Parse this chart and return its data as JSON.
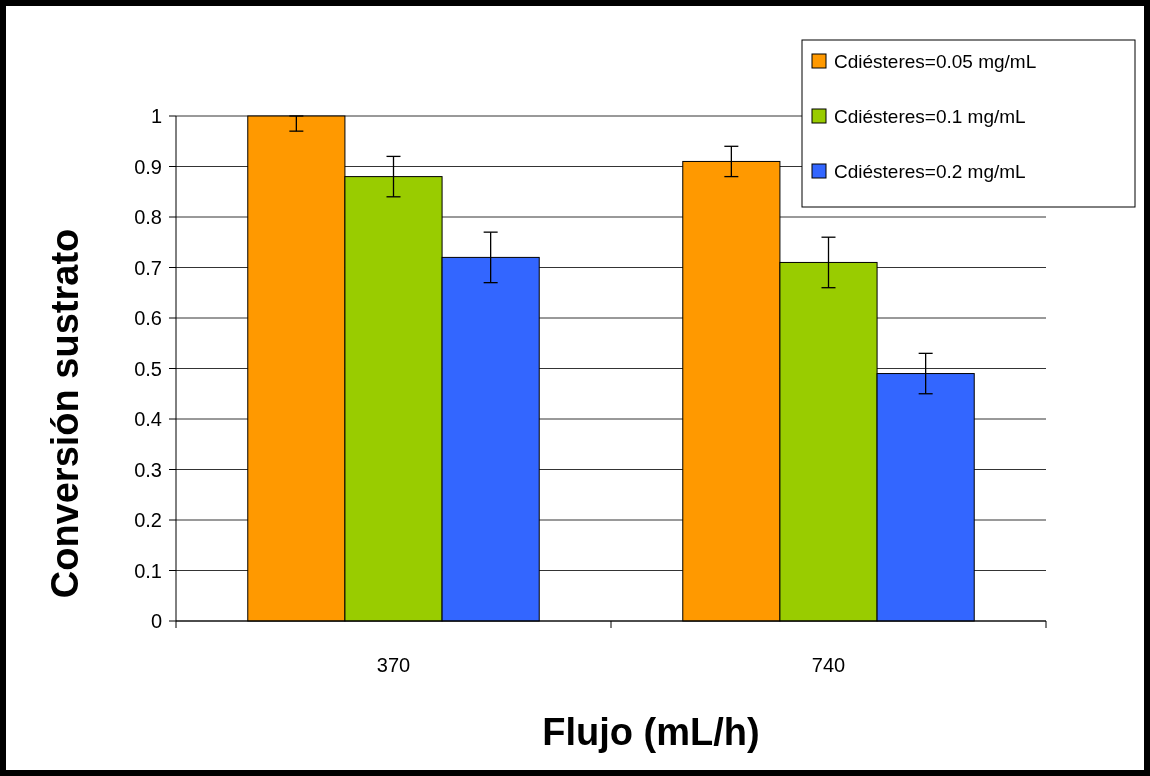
{
  "chart_data": {
    "type": "bar",
    "xlabel": "Flujo (mL/h)",
    "ylabel": "Conversión sustrato",
    "categories": [
      "370",
      "740"
    ],
    "series": [
      {
        "name": "Cdiésteres=0.05 mg/mL",
        "color": "#ff9900",
        "values": [
          1.0,
          0.91
        ],
        "errors": [
          [
            0.97,
            1.0
          ],
          0.03
        ]
      },
      {
        "name": "Cdiésteres=0.1 mg/mL",
        "color": "#99cc00",
        "values": [
          0.88,
          0.71
        ],
        "errors": [
          0.04,
          0.05
        ]
      },
      {
        "name": "Cdiésteres=0.2 mg/mL",
        "color": "#3366ff",
        "values": [
          0.72,
          0.49
        ],
        "errors": [
          0.05,
          0.04
        ]
      }
    ],
    "ylim": [
      0,
      1
    ],
    "yticks": [
      0,
      0.1,
      0.2,
      0.3,
      0.4,
      0.5,
      0.6,
      0.7,
      0.8,
      0.9,
      1
    ],
    "grid": "y",
    "legend": "top right"
  }
}
